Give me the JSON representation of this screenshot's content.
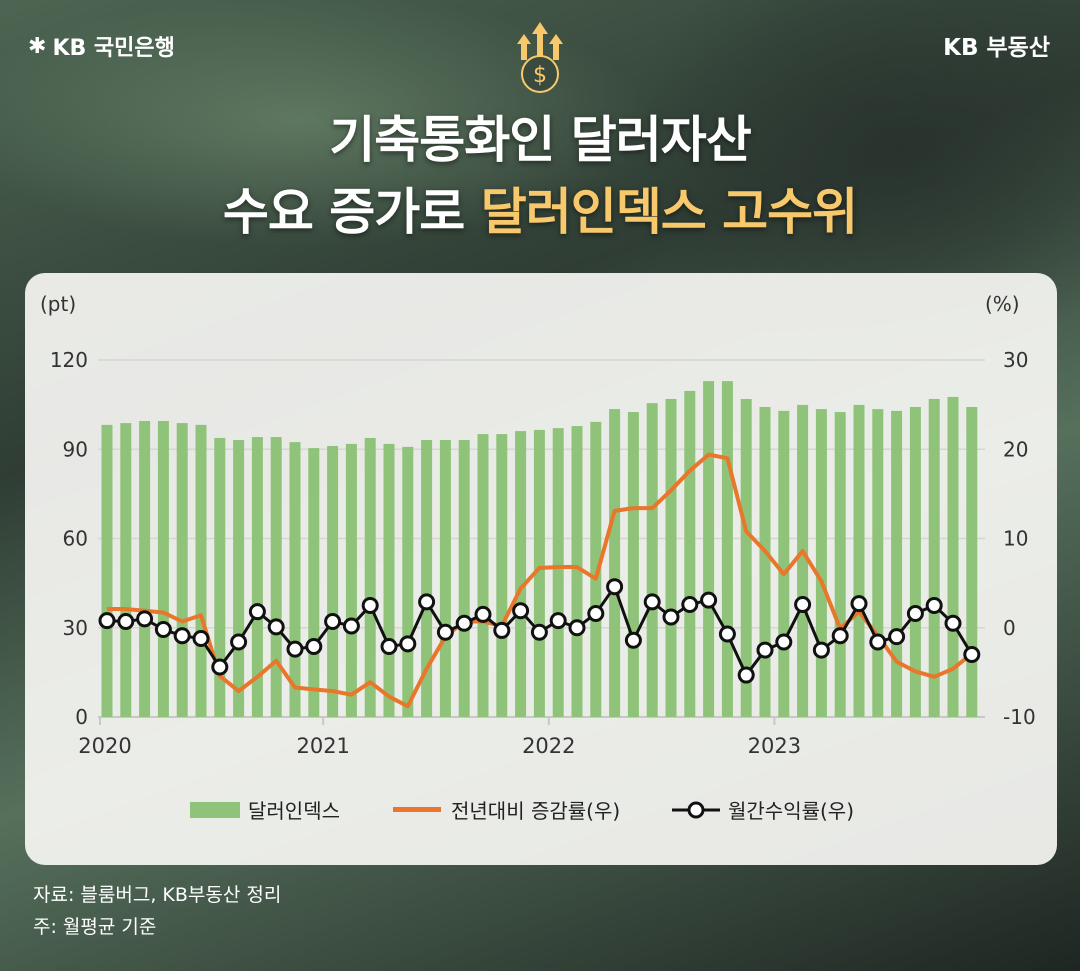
{
  "header": {
    "brand_left": "KB 국민은행",
    "brand_right": "KB 부동산",
    "icon": "dollar-coin-arrows-icon"
  },
  "title": {
    "line1": "기축통화인 달러자산",
    "line2_prefix": "수요 증가로 ",
    "line2_highlight": "달러인덱스 고수위",
    "highlight_color": "#f8c96c"
  },
  "chart_data": {
    "type": "bar+line",
    "left_unit": "(pt)",
    "right_unit": "(%)",
    "ylim_left": [
      0,
      120
    ],
    "yticks_left": [
      "0",
      "30",
      "60",
      "90",
      "120"
    ],
    "ylim_right": [
      -10,
      30
    ],
    "yticks_right": [
      "-10",
      "0",
      "10",
      "20",
      "30"
    ],
    "x_ticks": [
      "2020",
      "2021",
      "2022",
      "2023"
    ],
    "x_start": "2020-01",
    "x_end": "2023-11",
    "grid": true,
    "legend_position": "bottom",
    "series": [
      {
        "name": "달러인덱스",
        "type": "bar",
        "axis": "left",
        "color": "#8fc37a",
        "values": [
          98.2,
          98.8,
          99.5,
          99.5,
          98.8,
          98.2,
          93.8,
          93.1,
          94.1,
          94.1,
          92.4,
          90.4,
          91.1,
          91.8,
          93.8,
          91.8,
          90.8,
          93.1,
          93.1,
          93.1,
          95.1,
          95.1,
          96.1,
          96.5,
          97.1,
          97.8,
          99.2,
          103.5,
          102.5,
          105.5,
          106.9,
          109.6,
          112.9,
          112.9,
          106.9,
          104.2,
          102.9,
          104.9,
          103.5,
          102.5,
          104.9,
          103.5,
          102.9,
          104.2,
          106.9,
          107.6,
          104.2
        ]
      },
      {
        "name": "전년대비 증감률(우)",
        "type": "line",
        "axis": "right",
        "color": "#e8762b",
        "values": [
          2.1,
          2.1,
          1.9,
          1.7,
          0.7,
          1.4,
          -5.4,
          -7.1,
          -5.5,
          -3.7,
          -6.7,
          -6.9,
          -7.1,
          -7.5,
          -6.1,
          -7.7,
          -8.8,
          -4.6,
          -1.0,
          0.7,
          0.7,
          0.2,
          4.4,
          6.7,
          6.8,
          6.8,
          5.5,
          13.1,
          13.4,
          13.4,
          15.4,
          17.6,
          19.4,
          19.0,
          10.8,
          8.6,
          6.0,
          8.6,
          5.2,
          -0.1,
          1.8,
          -0.9,
          -3.8,
          -4.9,
          -5.5,
          -4.6,
          -2.9
        ]
      },
      {
        "name": "월간수익률(우)",
        "type": "line-marker",
        "axis": "right",
        "color": "#111111",
        "values": [
          0.8,
          0.7,
          1.0,
          -0.2,
          -0.9,
          -1.2,
          -4.4,
          -1.6,
          1.8,
          0.1,
          -2.4,
          -2.1,
          0.7,
          0.2,
          2.5,
          -2.1,
          -1.8,
          2.9,
          -0.5,
          0.5,
          1.5,
          -0.3,
          1.9,
          -0.5,
          0.8,
          0.0,
          1.6,
          4.6,
          -1.4,
          2.9,
          1.2,
          2.6,
          3.1,
          -0.7,
          -5.3,
          -2.5,
          -1.6,
          2.6,
          -2.5,
          -0.9,
          2.7,
          -1.6,
          -1.0,
          1.6,
          2.5,
          0.5,
          -3.0
        ]
      }
    ]
  },
  "source": {
    "line1": "자료: 블룸버그, KB부동산 정리",
    "line2": "주: 월평균 기준"
  }
}
